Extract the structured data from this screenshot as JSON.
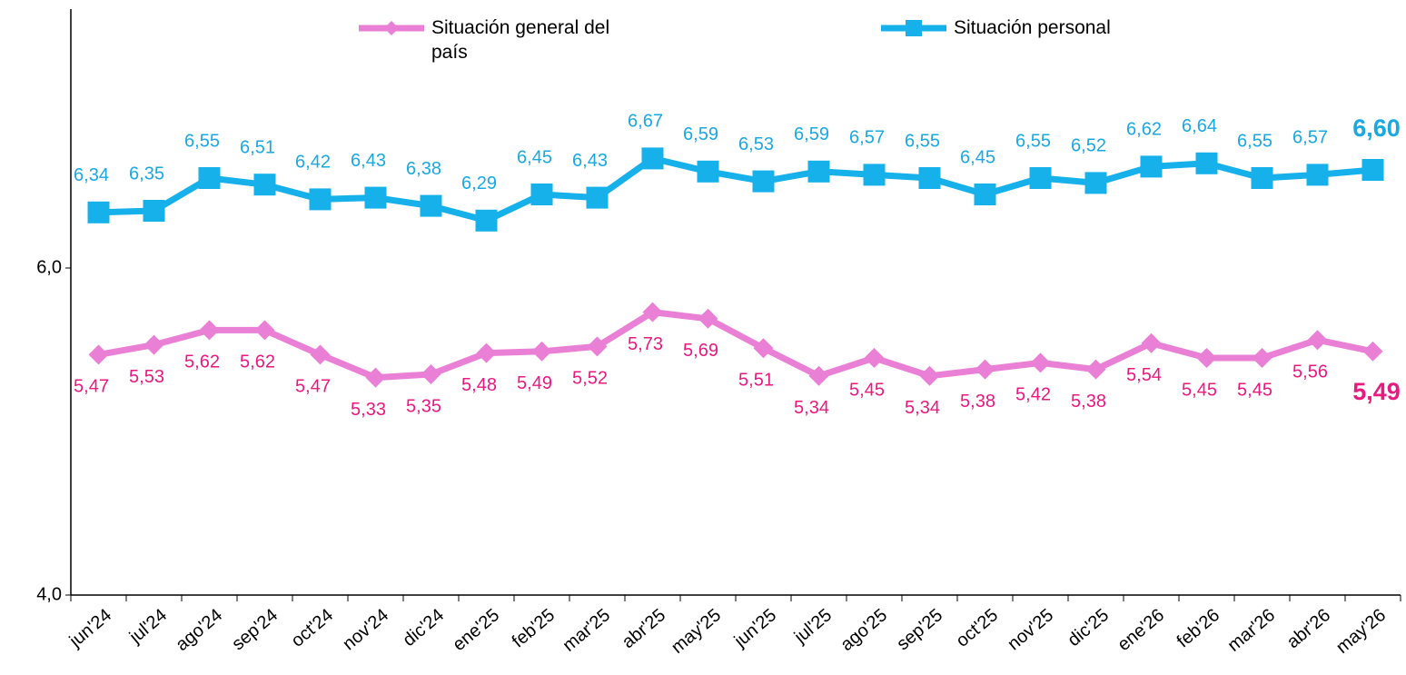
{
  "chart_data": {
    "type": "line",
    "categories": [
      "jun'24",
      "jul'24",
      "ago'24",
      "sep'24",
      "oct'24",
      "nov'24",
      "dic'24",
      "ene'25",
      "feb'25",
      "mar'25",
      "abr'25",
      "may'25",
      "jun'25",
      "jul'25",
      "ago'25",
      "sep'25",
      "oct'25",
      "nov'25",
      "dic'25",
      "ene'26",
      "feb'26",
      "mar'26",
      "abr'26",
      "may'26"
    ],
    "series": [
      {
        "name": "Situación general del país",
        "color": "#ea7fd6",
        "label_color": "#e8197f",
        "marker": "diamond",
        "values": [
          5.47,
          5.53,
          5.62,
          5.62,
          5.47,
          5.33,
          5.35,
          5.48,
          5.49,
          5.52,
          5.73,
          5.69,
          5.51,
          5.34,
          5.45,
          5.34,
          5.38,
          5.42,
          5.38,
          5.54,
          5.45,
          5.45,
          5.56,
          5.49
        ],
        "value_labels": [
          "5,47",
          "5,53",
          "5,62",
          "5,62",
          "5,47",
          "5,33",
          "5,35",
          "5,48",
          "5,49",
          "5,52",
          "5,73",
          "5,69",
          "5,51",
          "5,34",
          "5,45",
          "5,34",
          "5,38",
          "5,42",
          "5,38",
          "5,54",
          "5,45",
          "5,45",
          "5,56",
          "5,49"
        ]
      },
      {
        "name": "Situación personal",
        "color": "#16b0ea",
        "label_color": "#1aa8e2",
        "marker": "square",
        "values": [
          6.34,
          6.35,
          6.55,
          6.51,
          6.42,
          6.43,
          6.38,
          6.29,
          6.45,
          6.43,
          6.67,
          6.59,
          6.53,
          6.59,
          6.57,
          6.55,
          6.45,
          6.55,
          6.52,
          6.62,
          6.64,
          6.55,
          6.57,
          6.6
        ],
        "value_labels": [
          "6,34",
          "6,35",
          "6,55",
          "6,51",
          "6,42",
          "6,43",
          "6,38",
          "6,29",
          "6,45",
          "6,43",
          "6,67",
          "6,59",
          "6,53",
          "6,59",
          "6,57",
          "6,55",
          "6,45",
          "6,55",
          "6,52",
          "6,62",
          "6,64",
          "6,55",
          "6,57",
          "6,60"
        ]
      }
    ],
    "ylim": [
      4,
      7.6
    ],
    "yticks": [
      {
        "value": 4,
        "label": "4,0"
      },
      {
        "value": 6,
        "label": "6,0"
      }
    ],
    "grid": false
  }
}
